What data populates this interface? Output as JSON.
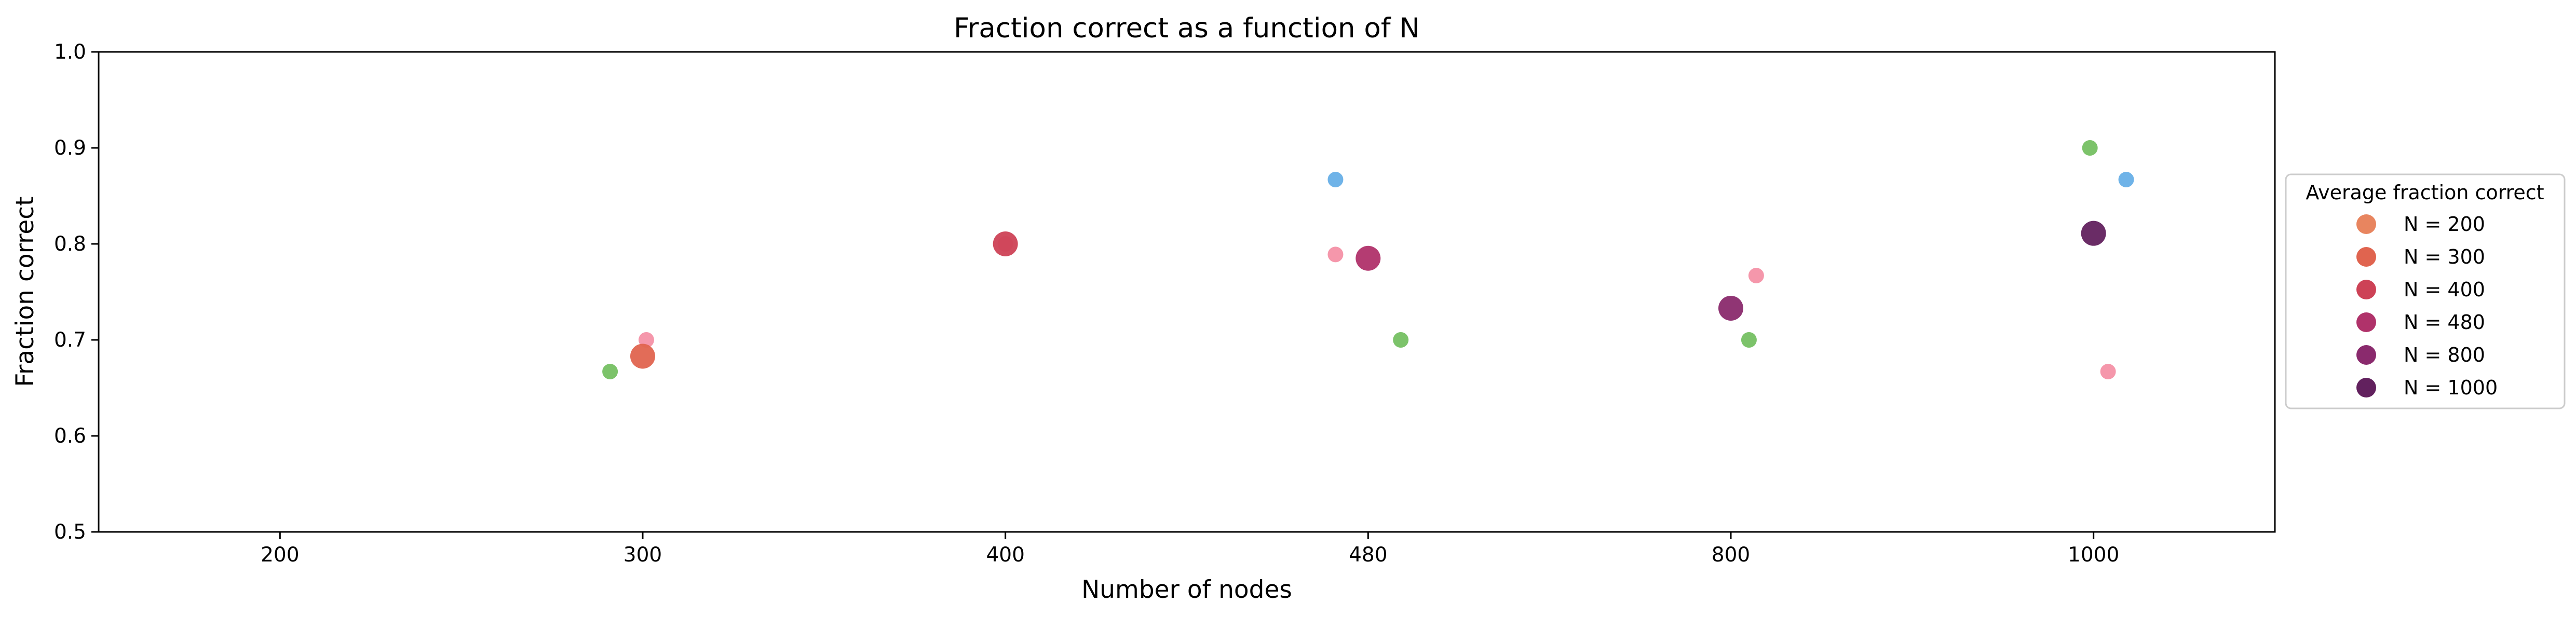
{
  "chart_data": {
    "type": "scatter",
    "title": "Fraction correct as a function of N",
    "xlabel": "Number of nodes",
    "ylabel": "Fraction correct",
    "categories": [
      "200",
      "300",
      "400",
      "480",
      "800",
      "1000"
    ],
    "xlim": [
      -0.5,
      5.5
    ],
    "ylim": [
      0.5,
      1.0
    ],
    "yticks": [
      "0.5",
      "0.6",
      "0.7",
      "0.8",
      "0.9",
      "1.0"
    ],
    "grid": false,
    "legend": {
      "title": "Average fraction correct",
      "placement": "right",
      "entries": [
        {
          "label": "N = 200",
          "color": "#e8855f"
        },
        {
          "label": "N = 300",
          "color": "#e0644f"
        },
        {
          "label": "N = 400",
          "color": "#cd4256"
        },
        {
          "label": "N = 480",
          "color": "#b0326a"
        },
        {
          "label": "N = 800",
          "color": "#8a2a6d"
        },
        {
          "label": "N = 1000",
          "color": "#62215e"
        }
      ]
    },
    "averages": [
      {
        "category": "300",
        "x": 1.0,
        "y": 0.683,
        "color": "#e0644f"
      },
      {
        "category": "400",
        "x": 2.0,
        "y": 0.8,
        "color": "#cd4256"
      },
      {
        "category": "480",
        "x": 3.0,
        "y": 0.785,
        "color": "#b0326a"
      },
      {
        "category": "800",
        "x": 4.0,
        "y": 0.733,
        "color": "#8a2a6d"
      },
      {
        "category": "1000",
        "x": 5.0,
        "y": 0.811,
        "color": "#62215e"
      }
    ],
    "points": [
      {
        "x": 0.91,
        "y": 0.667,
        "color": "#7cc36a"
      },
      {
        "x": 1.01,
        "y": 0.7,
        "color": "#f597ab"
      },
      {
        "x": 2.0,
        "y": 0.8,
        "color": "#f597ab"
      },
      {
        "x": 2.91,
        "y": 0.867,
        "color": "#6fb3e8"
      },
      {
        "x": 2.91,
        "y": 0.789,
        "color": "#f597ab"
      },
      {
        "x": 3.09,
        "y": 0.7,
        "color": "#7cc36a"
      },
      {
        "x": 4.05,
        "y": 0.7,
        "color": "#7cc36a"
      },
      {
        "x": 4.07,
        "y": 0.767,
        "color": "#f597ab"
      },
      {
        "x": 4.99,
        "y": 0.9,
        "color": "#7cc36a"
      },
      {
        "x": 5.09,
        "y": 0.867,
        "color": "#6fb3e8"
      },
      {
        "x": 5.04,
        "y": 0.667,
        "color": "#f597ab"
      }
    ]
  }
}
